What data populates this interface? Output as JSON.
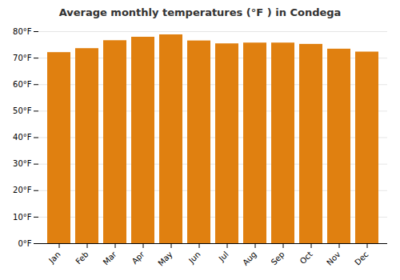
{
  "chart_data": {
    "type": "bar",
    "title": "Average monthly temperatures (°F ) in Condega",
    "categories": [
      "Jan",
      "Feb",
      "Mar",
      "Apr",
      "May",
      "Jun",
      "Jul",
      "Aug",
      "Sep",
      "Oct",
      "Nov",
      "Dec"
    ],
    "values": [
      72.1,
      73.6,
      76.6,
      77.9,
      78.8,
      76.5,
      75.4,
      75.7,
      75.7,
      75.2,
      73.4,
      72.3
    ],
    "color": "#E08010",
    "ylim": [
      0,
      80
    ],
    "yticks": [
      {
        "value": 0,
        "label": "0°F"
      },
      {
        "value": 10,
        "label": "10°F"
      },
      {
        "value": 20,
        "label": "20°F"
      },
      {
        "value": 30,
        "label": "30°F"
      },
      {
        "value": 40,
        "label": "40°F"
      },
      {
        "value": 50,
        "label": "50°F"
      },
      {
        "value": 60,
        "label": "60°F"
      },
      {
        "value": 70,
        "label": "70°F"
      },
      {
        "value": 80,
        "label": "80°F"
      }
    ],
    "grid": true
  }
}
